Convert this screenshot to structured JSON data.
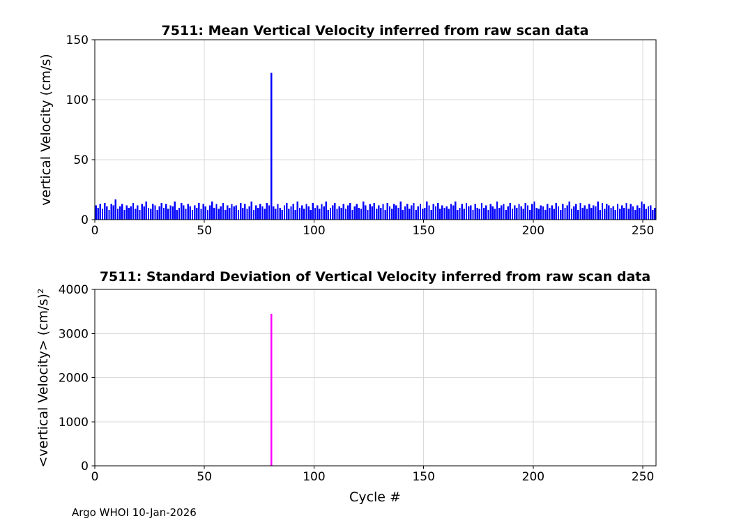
{
  "figure": {
    "footer": "Argo WHOI 10-Jan-2026",
    "background": "#ffffff"
  },
  "chart_data": [
    {
      "type": "bar",
      "title": "7511: Mean Vertical Velocity inferred from raw scan data",
      "xlabel": "",
      "ylabel": "vertical Velocity (cm/s)",
      "bar_color": "#0000ff",
      "grid": true,
      "xlim": [
        0,
        256
      ],
      "ylim": [
        0,
        150
      ],
      "xticks": [
        0,
        50,
        100,
        150,
        200,
        250
      ],
      "yticks": [
        0,
        50,
        100,
        150
      ],
      "spike_cycle": 80,
      "spike_value": 122.3,
      "values": [
        12,
        10,
        13,
        9,
        14,
        11,
        8,
        13,
        12,
        17,
        9,
        11,
        13,
        8,
        12,
        10,
        11,
        14,
        9,
        12,
        8,
        13,
        11,
        15,
        10,
        9,
        13,
        12,
        8,
        11,
        14,
        10,
        13,
        9,
        12,
        11,
        15,
        8,
        10,
        14,
        12,
        9,
        13,
        11,
        8,
        12,
        10,
        14,
        9,
        13,
        11,
        8,
        12,
        15,
        10,
        13,
        9,
        11,
        14,
        8,
        12,
        10,
        13,
        11,
        12,
        8,
        14,
        10,
        13,
        9,
        11,
        15,
        8,
        12,
        10,
        13,
        11,
        9,
        14,
        12,
        122.3,
        11,
        9,
        13,
        10,
        8,
        12,
        14,
        9,
        11,
        13,
        8,
        15,
        10,
        12,
        9,
        13,
        11,
        8,
        14,
        10,
        12,
        9,
        13,
        11,
        15,
        8,
        10,
        12,
        14,
        9,
        11,
        10,
        13,
        9,
        12,
        14,
        8,
        11,
        13,
        10,
        9,
        15,
        12,
        8,
        13,
        11,
        14,
        9,
        12,
        10,
        13,
        8,
        14,
        11,
        9,
        13,
        12,
        10,
        15,
        8,
        11,
        13,
        9,
        12,
        14,
        8,
        11,
        13,
        9,
        10,
        15,
        12,
        8,
        13,
        11,
        14,
        9,
        12,
        10,
        11,
        9,
        13,
        12,
        15,
        8,
        10,
        13,
        9,
        14,
        11,
        12,
        8,
        13,
        10,
        9,
        14,
        10,
        12,
        8,
        13,
        11,
        9,
        15,
        10,
        12,
        13,
        8,
        11,
        14,
        9,
        12,
        10,
        13,
        11,
        9,
        14,
        12,
        8,
        13,
        15,
        10,
        9,
        12,
        11,
        8,
        13,
        10,
        12,
        9,
        14,
        11,
        8,
        13,
        10,
        12,
        15,
        9,
        11,
        13,
        8,
        14,
        10,
        12,
        9,
        13,
        10,
        12,
        11,
        15,
        8,
        14,
        9,
        13,
        12,
        10,
        11,
        8,
        13,
        9,
        12,
        10,
        14,
        9,
        13,
        11,
        8,
        12,
        10,
        15,
        13,
        9,
        11,
        12,
        8,
        10
      ]
    },
    {
      "type": "bar",
      "title": "7511: Standard Deviation of Vertical Velocity inferred from raw scan data",
      "xlabel": "Cycle #",
      "ylabel": "<vertical Velocity> (cm/s)²",
      "bar_color": "#ff00ff",
      "grid": true,
      "xlim": [
        0,
        256
      ],
      "ylim": [
        0,
        4000
      ],
      "xticks": [
        0,
        50,
        100,
        150,
        200,
        250
      ],
      "yticks": [
        0,
        1000,
        2000,
        3000,
        4000
      ],
      "n_points": 256,
      "baseline_value": 0,
      "spikes": {
        "80": 3447
      }
    }
  ]
}
